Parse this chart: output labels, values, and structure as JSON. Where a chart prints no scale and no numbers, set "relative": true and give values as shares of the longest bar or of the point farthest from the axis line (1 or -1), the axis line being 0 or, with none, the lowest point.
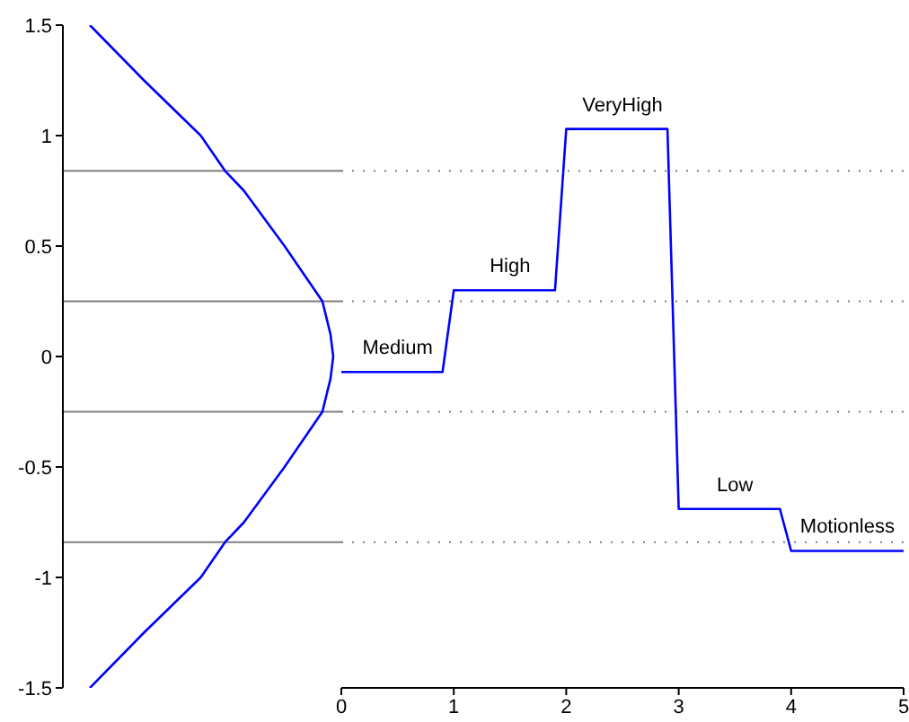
{
  "chart_data": [
    {
      "type": "line",
      "orientation": "horizontal",
      "relative": true,
      "tick_labels": "y",
      "ylim": [
        -1.5,
        1.5
      ],
      "yticks": [
        -1.5,
        -1,
        -0.5,
        0,
        0.5,
        1,
        1.5
      ],
      "x": [
        1.5,
        1.25,
        1,
        0.84,
        0.75,
        0.5,
        0.25,
        0.1,
        0,
        -0.1,
        -0.25,
        -0.5,
        -0.75,
        -0.84,
        -1,
        -1.25,
        -1.5
      ],
      "series": [
        {
          "color": "#0000ff",
          "values": [
            0.1,
            0.3,
            0.51,
            0.6,
            0.67,
            0.82,
            0.96,
            0.99,
            1,
            0.99,
            0.96,
            0.82,
            0.67,
            0.6,
            0.51,
            0.3,
            0.1
          ]
        }
      ],
      "ref_lines": [
        {
          "axis": "y",
          "value": 0.84,
          "color": "#7f7f7f",
          "line_style": "solid"
        },
        {
          "axis": "y",
          "value": 0.25,
          "color": "#7f7f7f",
          "line_style": "solid"
        },
        {
          "axis": "y",
          "value": -0.25,
          "color": "#7f7f7f",
          "line_style": "solid"
        },
        {
          "axis": "y",
          "value": -0.84,
          "color": "#7f7f7f",
          "line_style": "solid"
        }
      ]
    },
    {
      "type": "line",
      "tick_labels": "x",
      "xlim": [
        0,
        5
      ],
      "xticks": [
        0,
        1,
        2,
        3,
        4,
        5
      ],
      "ylim": [
        -1.5,
        1.5
      ],
      "x": [
        0,
        0.9,
        1,
        1.9,
        2,
        2.9,
        3,
        3.9,
        4,
        5
      ],
      "series": [
        {
          "color": "#0000ff",
          "values": [
            -0.07,
            -0.07,
            0.3,
            0.3,
            1.03,
            1.03,
            -0.69,
            -0.69,
            -0.88,
            -0.88
          ]
        }
      ],
      "ref_lines": [
        {
          "axis": "y",
          "value": 0.84,
          "color": "#7f7f7f",
          "line_style": "dotted"
        },
        {
          "axis": "y",
          "value": 0.25,
          "color": "#7f7f7f",
          "line_style": "dotted"
        },
        {
          "axis": "y",
          "value": -0.25,
          "color": "#7f7f7f",
          "line_style": "dotted"
        },
        {
          "axis": "y",
          "value": -0.84,
          "color": "#7f7f7f",
          "line_style": "dotted"
        }
      ],
      "annotations": [
        {
          "text": "Medium",
          "x": 0.5,
          "y": -0.07
        },
        {
          "text": "High",
          "x": 1.5,
          "y": 0.3
        },
        {
          "text": "VeryHigh",
          "x": 2.5,
          "y": 1.03
        },
        {
          "text": "Low",
          "x": 3.5,
          "y": -0.69
        },
        {
          "text": "Motionless",
          "x": 4.5,
          "y": -0.88
        }
      ]
    }
  ]
}
